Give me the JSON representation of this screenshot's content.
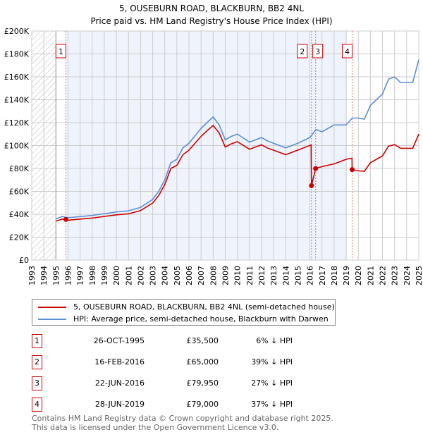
{
  "chart_data": {
    "type": "line",
    "title": "5, OUSEBURN ROAD, BLACKBURN, BB2 4NL",
    "subtitle": "Price paid vs. HM Land Registry's House Price Index (HPI)",
    "xlim": [
      1993,
      2025
    ],
    "ylim": [
      0,
      200000
    ],
    "yticks": [
      0,
      20000,
      40000,
      60000,
      80000,
      100000,
      120000,
      140000,
      160000,
      180000,
      200000
    ],
    "ytick_labels": [
      "£0",
      "£20K",
      "£40K",
      "£60K",
      "£80K",
      "£100K",
      "£120K",
      "£140K",
      "£160K",
      "£180K",
      "£200K"
    ],
    "xticks": [
      1993,
      1994,
      1995,
      1996,
      1997,
      1998,
      1999,
      2000,
      2001,
      2002,
      2003,
      2004,
      2005,
      2006,
      2007,
      2008,
      2009,
      2010,
      2011,
      2012,
      2013,
      2014,
      2015,
      2016,
      2017,
      2018,
      2019,
      2020,
      2021,
      2022,
      2023,
      2024,
      2025
    ],
    "grid": true,
    "hatched_range": [
      1993,
      1995
    ],
    "shaded_range": [
      1995.82,
      2019.05
    ],
    "series": [
      {
        "name": "5, OUSEBURN ROAD, BLACKBURN, BB2 4NL (semi-detached house)",
        "color": "#cc0000",
        "x": [
          1995,
          1995.5,
          1995.82,
          1996,
          1998,
          2000,
          2001,
          2002,
          2003,
          2003.5,
          2004,
          2004.5,
          2005,
          2005.5,
          2006,
          2007,
          2007.5,
          2008,
          2008.5,
          2009,
          2009.5,
          2010,
          2011,
          2012,
          2012.5,
          2013,
          2014,
          2015,
          2016.1,
          2016.13,
          2016.47,
          2017,
          2018,
          2019,
          2019.48,
          2019.49,
          2020,
          2020.5,
          2021,
          2022,
          2022.5,
          2023,
          2023.5,
          2024,
          2024.5,
          2025
        ],
        "y": [
          34000,
          35700,
          35500,
          34800,
          36700,
          39500,
          40400,
          43200,
          49800,
          56400,
          65800,
          80000,
          82700,
          92000,
          96000,
          108000,
          113000,
          117500,
          111000,
          98700,
          101500,
          103400,
          96800,
          100600,
          97800,
          95900,
          92000,
          96000,
          100500,
          65000,
          79950,
          81600,
          84000,
          88000,
          89000,
          79000,
          78000,
          77500,
          85000,
          91000,
          99500,
          100800,
          97600,
          97600,
          97600,
          110000
        ]
      },
      {
        "name": "HPI: Average price, semi-detached house, Blackburn with Darwen",
        "color": "#5b8fd4",
        "x": [
          1995,
          1995.5,
          1996,
          1998,
          2000,
          2001,
          2002,
          2003,
          2003.5,
          2004,
          2004.5,
          2005,
          2005.5,
          2006,
          2007,
          2007.5,
          2008,
          2008.5,
          2009,
          2009.5,
          2010,
          2011,
          2012,
          2012.5,
          2013,
          2014,
          2015,
          2016,
          2016.5,
          2017,
          2018,
          2019,
          2019.5,
          2020,
          2020.5,
          2021,
          2022,
          2022.5,
          2023,
          2023.5,
          2024,
          2024.5,
          2025
        ],
        "y": [
          36000,
          38000,
          37000,
          39000,
          42000,
          43000,
          46000,
          53000,
          60000,
          70000,
          85000,
          88000,
          98000,
          102000,
          115000,
          120000,
          125000,
          118000,
          105000,
          108000,
          110000,
          103000,
          107000,
          104000,
          102000,
          98000,
          102000,
          107000,
          114000,
          112000,
          118000,
          118000,
          124000,
          124000,
          123000,
          135000,
          145000,
          158000,
          160000,
          155000,
          155000,
          155000,
          175000
        ]
      }
    ],
    "sales": [
      {
        "label": "1",
        "x": 1995.82,
        "y": 35500
      },
      {
        "label": "2",
        "x": 2016.13,
        "y": 65000
      },
      {
        "label": "3",
        "x": 2016.47,
        "y": 79950
      },
      {
        "label": "4",
        "x": 2019.49,
        "y": 79000
      }
    ]
  },
  "legend": {
    "property": "5, OUSEBURN ROAD, BLACKBURN, BB2 4NL (semi-detached house)",
    "hpi": "HPI: Average price, semi-detached house, Blackburn with Darwen"
  },
  "transactions": [
    {
      "num": "1",
      "date": "26-OCT-1995",
      "price": "£35,500",
      "hpi": "6% ↓ HPI"
    },
    {
      "num": "2",
      "date": "16-FEB-2016",
      "price": "£65,000",
      "hpi": "39% ↓ HPI"
    },
    {
      "num": "3",
      "date": "22-JUN-2016",
      "price": "£79,950",
      "hpi": "27% ↓ HPI"
    },
    {
      "num": "4",
      "date": "28-JUN-2019",
      "price": "£79,000",
      "hpi": "37% ↓ HPI"
    }
  ],
  "footer": {
    "line1": "Contains HM Land Registry data © Crown copyright and database right 2025.",
    "line2": "This data is licensed under the Open Government Licence v3.0."
  }
}
